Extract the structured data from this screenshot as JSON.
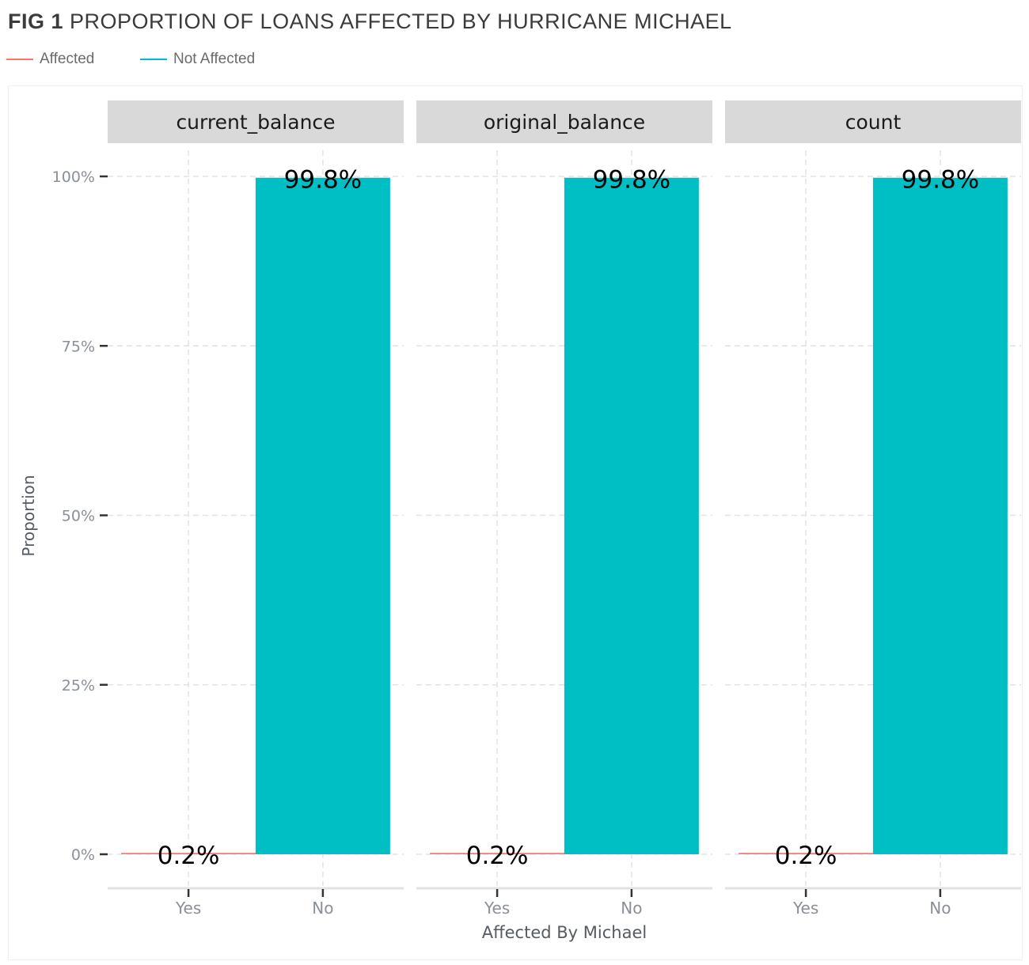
{
  "title": {
    "prefix": "FIG 1",
    "text": "PROPORTION OF LOANS AFFECTED BY HURRICANE MICHAEL"
  },
  "legend": [
    {
      "label": "Affected",
      "color": "#f8766d"
    },
    {
      "label": "Not Affected",
      "color": "#00bfc4"
    }
  ],
  "chart_data": {
    "type": "bar",
    "title": "PROPORTION OF LOANS AFFECTED BY HURRICANE MICHAEL",
    "xlabel": "Affected By Michael",
    "ylabel": "Proportion",
    "ylim": [
      0,
      1
    ],
    "yticks": [
      {
        "value": 0,
        "label": "0%"
      },
      {
        "value": 0.25,
        "label": "25%"
      },
      {
        "value": 0.5,
        "label": "50%"
      },
      {
        "value": 0.75,
        "label": "75%"
      },
      {
        "value": 1.0,
        "label": "100%"
      }
    ],
    "categories": [
      "Yes",
      "No"
    ],
    "grid": true,
    "legend_position": "top-left",
    "facets": [
      {
        "name": "current_balance",
        "values": [
          0.002,
          0.998
        ],
        "labels": [
          "0.2%",
          "99.8%"
        ]
      },
      {
        "name": "original_balance",
        "values": [
          0.002,
          0.998
        ],
        "labels": [
          "0.2%",
          "99.8%"
        ]
      },
      {
        "name": "count",
        "values": [
          0.002,
          0.998
        ],
        "labels": [
          "0.2%",
          "99.8%"
        ]
      }
    ]
  }
}
